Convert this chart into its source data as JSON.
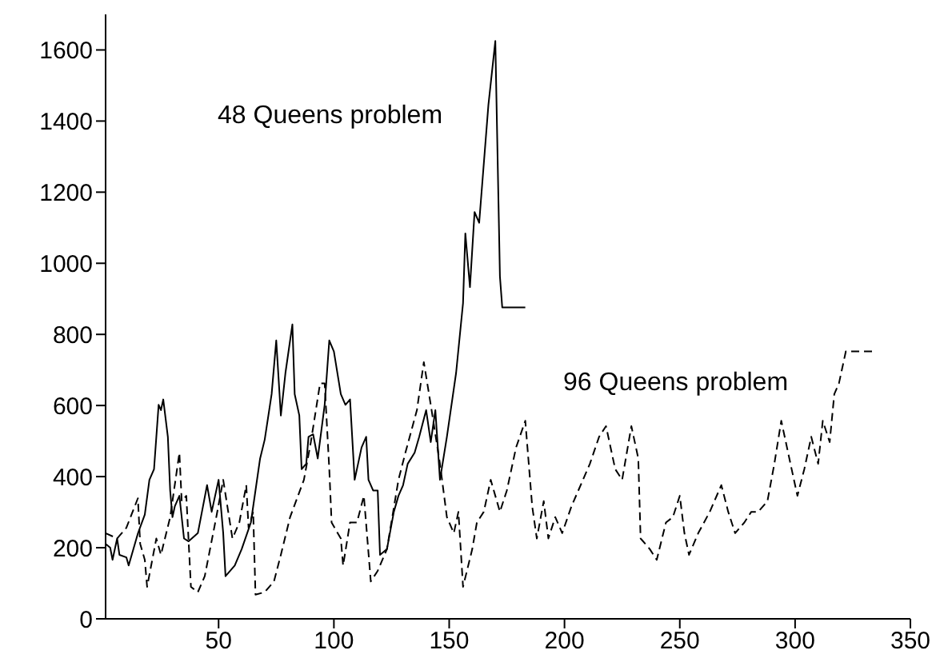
{
  "chart_data": {
    "type": "line",
    "xlim": [
      1,
      350
    ],
    "xticks": [
      50,
      100,
      150,
      200,
      250,
      300,
      350
    ],
    "ylim": [
      0,
      1700
    ],
    "yticks": [
      0,
      200,
      400,
      600,
      800,
      1000,
      1200,
      1400,
      1600
    ],
    "marker": "none",
    "series": [
      {
        "name": "48 Queens problem",
        "color": "#000000",
        "line_style": "solid",
        "x": [
          1,
          3,
          4,
          6,
          7,
          10,
          11,
          15,
          18,
          20,
          22,
          24,
          25,
          26,
          28,
          29,
          30,
          31,
          33,
          35,
          37,
          41,
          45,
          47,
          50,
          52,
          53,
          57,
          60,
          64,
          68,
          70,
          73,
          75,
          77,
          79,
          82,
          83,
          85,
          86,
          88,
          89,
          91,
          93,
          96,
          98,
          100,
          103,
          105,
          107,
          109,
          112,
          114,
          115,
          117,
          119,
          120,
          123,
          126,
          128,
          130,
          132,
          135,
          137,
          140,
          142,
          144,
          146,
          149,
          151,
          153,
          156,
          157,
          159,
          161,
          163,
          167,
          170,
          172,
          173,
          183
        ],
        "values": [
          211,
          200,
          166,
          226,
          180,
          173,
          150,
          240,
          293,
          391,
          421,
          602,
          587,
          617,
          512,
          361,
          286,
          316,
          346,
          226,
          218,
          241,
          376,
          301,
          391,
          241,
          120,
          150,
          196,
          271,
          451,
          504,
          632,
          783,
          572,
          692,
          828,
          632,
          572,
          421,
          436,
          512,
          519,
          451,
          602,
          783,
          752,
          632,
          602,
          617,
          391,
          482,
          512,
          391,
          361,
          361,
          180,
          196,
          301,
          346,
          376,
          436,
          467,
          512,
          587,
          497,
          587,
          391,
          512,
          602,
          692,
          888,
          1084,
          933,
          1144,
          1114,
          1445,
          1625,
          963,
          876,
          876
        ]
      },
      {
        "name": "96 Queens problem",
        "color": "#000000",
        "line_style": "dashed",
        "x": [
          1,
          6,
          10,
          15,
          16,
          18,
          19,
          23,
          25,
          29,
          33,
          34,
          36,
          38,
          41,
          44,
          49,
          52,
          56,
          59,
          62,
          63,
          65,
          66,
          70,
          74,
          77,
          81,
          87,
          90,
          94,
          96,
          98,
          99,
          103,
          104,
          107,
          110,
          113,
          116,
          119,
          123,
          128,
          131,
          136,
          139,
          142,
          146,
          149,
          152,
          154,
          156,
          160,
          162,
          165,
          168,
          172,
          175,
          179,
          183,
          186,
          188,
          191,
          193,
          196,
          199,
          203,
          208,
          211,
          215,
          218,
          222,
          225,
          229,
          232,
          233,
          237,
          240,
          244,
          247,
          250,
          252,
          254,
          258,
          263,
          268,
          271,
          274,
          278,
          281,
          284,
          288,
          291,
          294,
          298,
          301,
          304,
          307,
          310,
          312,
          315,
          317,
          319,
          322,
          335
        ],
        "values": [
          241,
          226,
          256,
          339,
          211,
          166,
          90,
          226,
          180,
          286,
          467,
          331,
          346,
          90,
          75,
          120,
          286,
          391,
          226,
          271,
          376,
          256,
          301,
          68,
          75,
          105,
          180,
          286,
          391,
          497,
          662,
          662,
          421,
          271,
          226,
          150,
          271,
          271,
          346,
          105,
          135,
          196,
          391,
          467,
          587,
          722,
          602,
          436,
          286,
          241,
          301,
          90,
          196,
          271,
          301,
          391,
          301,
          361,
          482,
          557,
          316,
          226,
          331,
          226,
          286,
          241,
          316,
          391,
          436,
          512,
          542,
          421,
          391,
          542,
          451,
          226,
          196,
          166,
          271,
          286,
          346,
          241,
          180,
          241,
          301,
          376,
          301,
          241,
          271,
          301,
          301,
          331,
          436,
          557,
          436,
          346,
          421,
          512,
          436,
          557,
          497,
          632,
          662,
          752,
          752
        ]
      }
    ]
  }
}
